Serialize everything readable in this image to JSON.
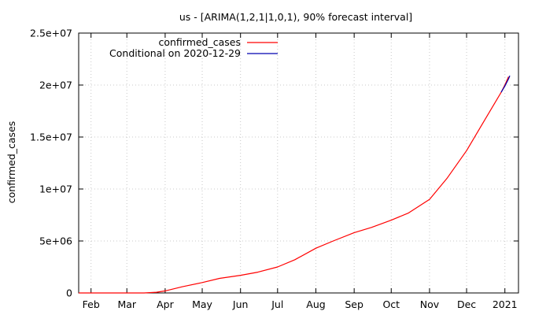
{
  "chart_data": {
    "type": "line",
    "title": "us -  [ARIMA(1,2,1|1,0,1), 90% forecast interval]",
    "xlabel": "",
    "ylabel": "confirmed_cases",
    "xlim": [
      "2020-01-22",
      "2021-01-12"
    ],
    "ylim": [
      0,
      25000000
    ],
    "grid": true,
    "legend_position": "top-left",
    "x_ticks": [
      {
        "label": "Feb",
        "date": "2020-02-01"
      },
      {
        "label": "Mar",
        "date": "2020-03-01"
      },
      {
        "label": "Apr",
        "date": "2020-04-01"
      },
      {
        "label": "May",
        "date": "2020-05-01"
      },
      {
        "label": "Jun",
        "date": "2020-06-01"
      },
      {
        "label": "Jul",
        "date": "2020-07-01"
      },
      {
        "label": "Aug",
        "date": "2020-08-01"
      },
      {
        "label": "Sep",
        "date": "2020-09-01"
      },
      {
        "label": "Oct",
        "date": "2020-10-01"
      },
      {
        "label": "Nov",
        "date": "2020-11-01"
      },
      {
        "label": "Dec",
        "date": "2020-12-01"
      },
      {
        "label": "2021",
        "date": "2021-01-01"
      }
    ],
    "y_ticks": [
      {
        "label": "0",
        "value": 0
      },
      {
        "label": "5e+06",
        "value": 5000000
      },
      {
        "label": "1e+07",
        "value": 10000000
      },
      {
        "label": "1.5e+07",
        "value": 15000000
      },
      {
        "label": "2e+07",
        "value": 20000000
      },
      {
        "label": "2.5e+07",
        "value": 25000000
      }
    ],
    "series": [
      {
        "name": "confirmed_cases",
        "color": "#ff0000",
        "points": [
          [
            "2020-01-22",
            0
          ],
          [
            "2020-03-01",
            100
          ],
          [
            "2020-03-15",
            3500
          ],
          [
            "2020-03-25",
            70000
          ],
          [
            "2020-04-01",
            200000
          ],
          [
            "2020-04-15",
            600000
          ],
          [
            "2020-05-01",
            1000000
          ],
          [
            "2020-05-15",
            1400000
          ],
          [
            "2020-06-01",
            1700000
          ],
          [
            "2020-06-15",
            2000000
          ],
          [
            "2020-07-01",
            2500000
          ],
          [
            "2020-07-15",
            3200000
          ],
          [
            "2020-08-01",
            4300000
          ],
          [
            "2020-08-15",
            5000000
          ],
          [
            "2020-09-01",
            5800000
          ],
          [
            "2020-09-15",
            6300000
          ],
          [
            "2020-10-01",
            7000000
          ],
          [
            "2020-10-15",
            7700000
          ],
          [
            "2020-11-01",
            9000000
          ],
          [
            "2020-11-15",
            11000000
          ],
          [
            "2020-12-01",
            13700000
          ],
          [
            "2020-12-15",
            16500000
          ],
          [
            "2020-12-29",
            19300000
          ],
          [
            "2021-01-01",
            20000000
          ],
          [
            "2021-01-04",
            20800000
          ]
        ]
      },
      {
        "name": "Conditional on 2020-12-29",
        "color": "#0000b0",
        "points": [
          [
            "2020-12-29",
            19300000
          ],
          [
            "2021-01-01",
            19900000
          ],
          [
            "2021-01-04",
            20600000
          ],
          [
            "2021-01-05",
            20900000
          ]
        ]
      }
    ]
  }
}
